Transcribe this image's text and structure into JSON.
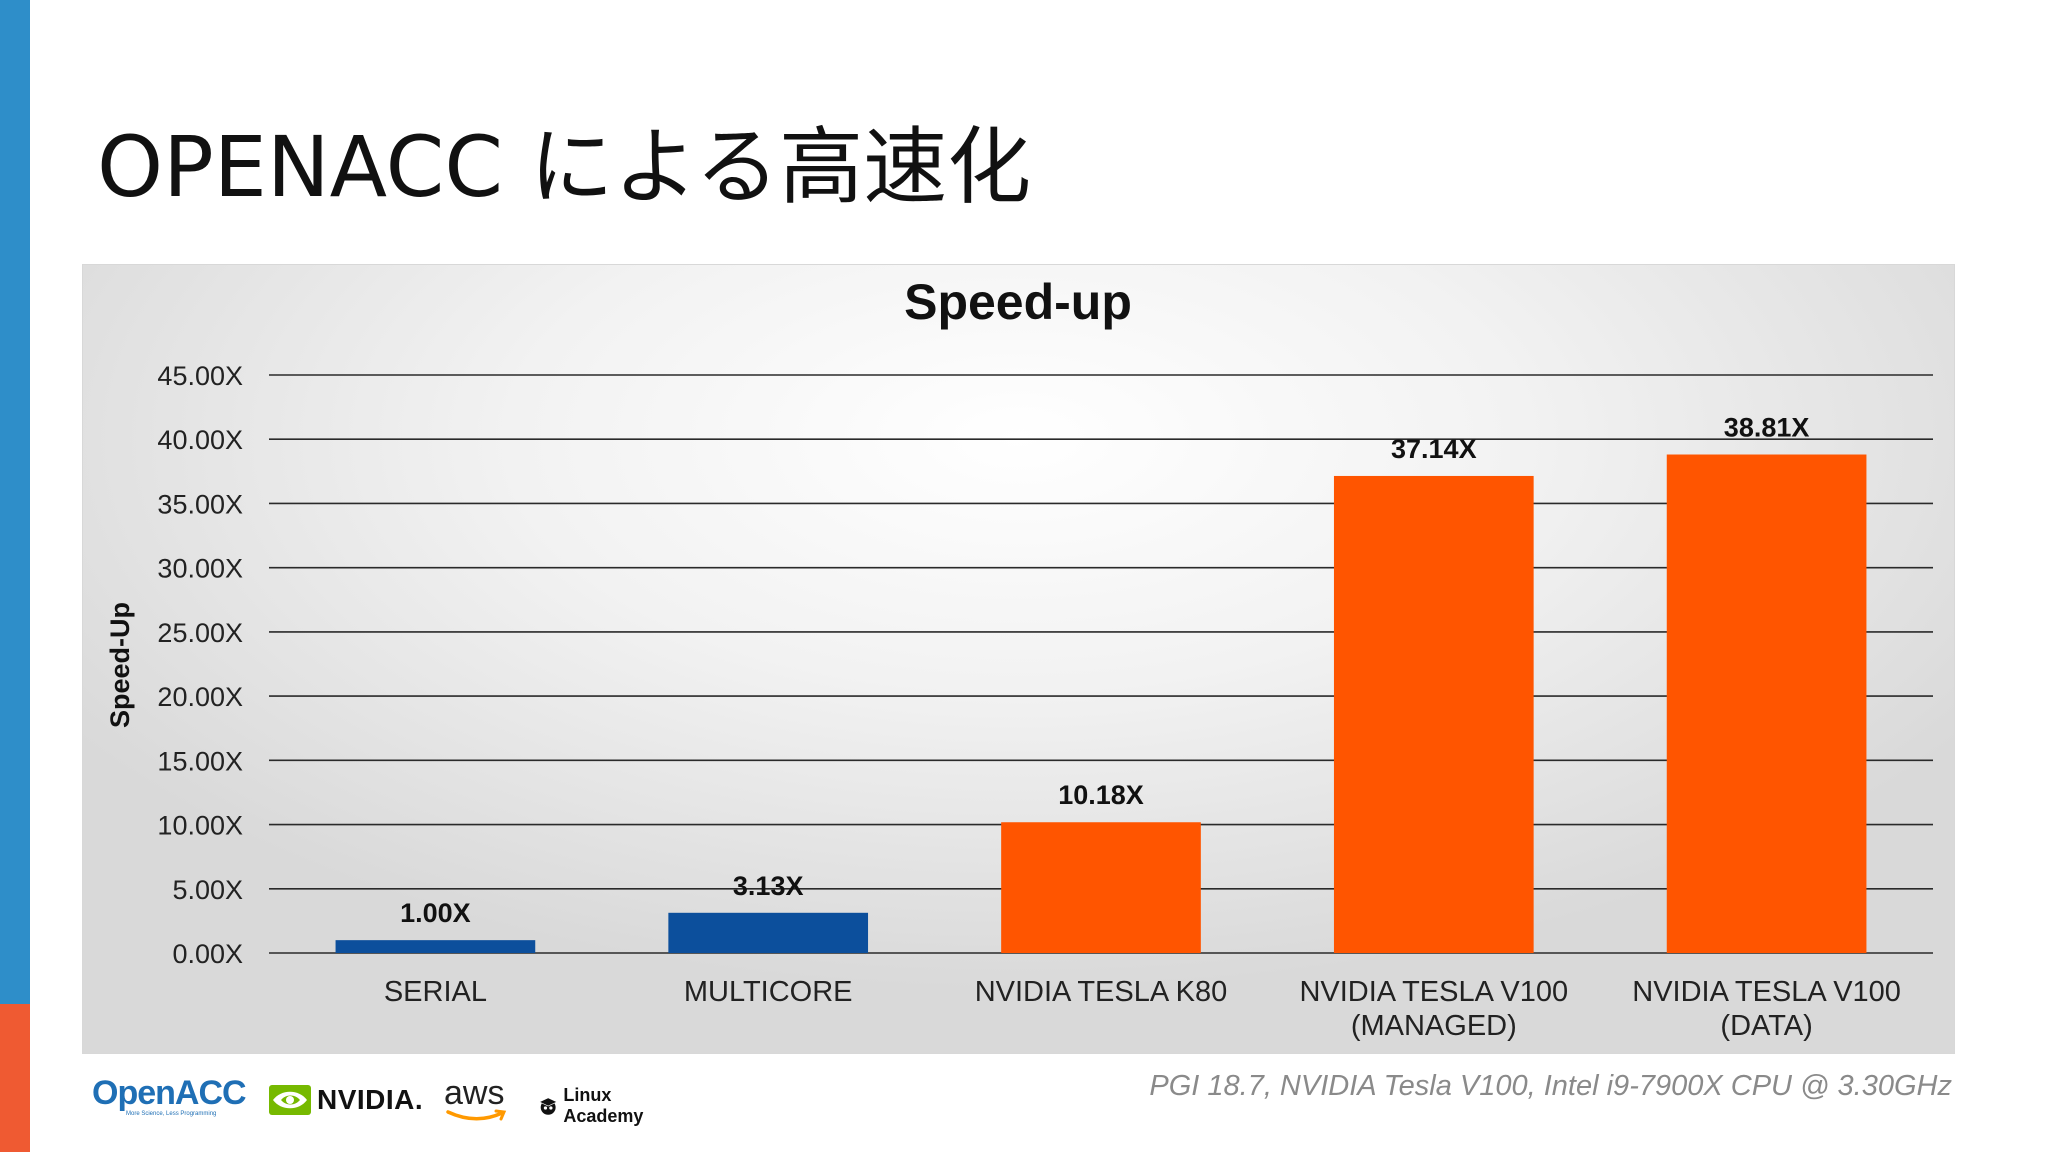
{
  "slide": {
    "title": "OPENACC による高速化",
    "footnote": "PGI 18.7, NVIDIA Tesla V100, Intel i9-7900X CPU @ 3.30GHz"
  },
  "colors": {
    "accent_blue": "#2e8ec9",
    "accent_orange": "#ef5a32",
    "bar_blue": "#0c4f9c",
    "bar_orange": "#ff5500"
  },
  "chart_data": {
    "type": "bar",
    "title": "Speed-up",
    "xlabel": "",
    "ylabel": "Speed-Up",
    "ylim": [
      0,
      45
    ],
    "y_ticks": [
      0,
      5,
      10,
      15,
      20,
      25,
      30,
      35,
      40,
      45
    ],
    "y_tick_labels": [
      "0.00X",
      "5.00X",
      "10.00X",
      "15.00X",
      "20.00X",
      "25.00X",
      "30.00X",
      "35.00X",
      "40.00X",
      "45.00X"
    ],
    "grid": true,
    "legend": "none",
    "categories": [
      [
        "SERIAL"
      ],
      [
        "MULTICORE"
      ],
      [
        "NVIDIA TESLA K80"
      ],
      [
        "NVIDIA TESLA V100",
        "(MANAGED)"
      ],
      [
        "NVIDIA TESLA V100",
        "(DATA)"
      ]
    ],
    "values": [
      1.0,
      3.13,
      10.18,
      37.14,
      38.81
    ],
    "data_labels": [
      "1.00X",
      "3.13X",
      "10.18X",
      "37.14X",
      "38.81X"
    ],
    "bar_colors": [
      "#0c4f9c",
      "#0c4f9c",
      "#ff5500",
      "#ff5500",
      "#ff5500"
    ]
  },
  "footer": {
    "logos": [
      {
        "name": "openacc-logo",
        "text": "OpenACC",
        "tagline": "More Science, Less Programming"
      },
      {
        "name": "nvidia-logo",
        "text": "NVIDIA."
      },
      {
        "name": "aws-logo",
        "text": "aws"
      },
      {
        "name": "linux-academy-logo",
        "text": "Linux Academy"
      }
    ]
  }
}
